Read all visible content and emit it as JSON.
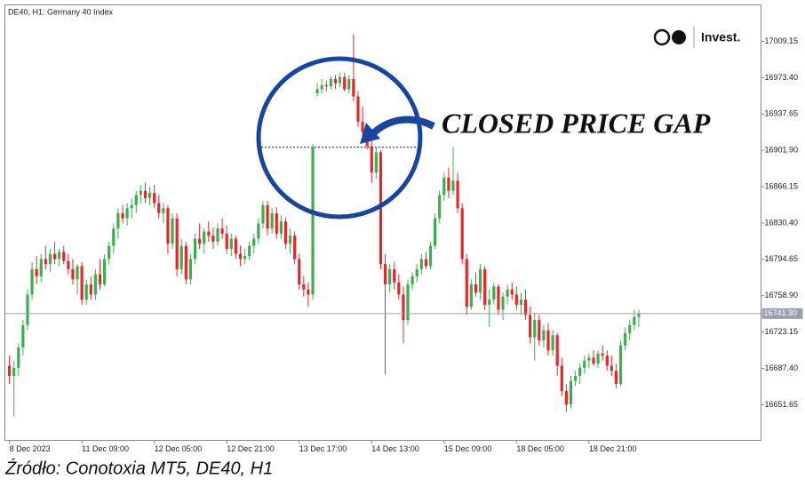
{
  "chart_data": {
    "type": "candlestick",
    "title": "DE40, H1:  Germany 40 Index",
    "annotation": "CLOSED PRICE GAP",
    "brand": "Invest.",
    "source": "Źródło: Conotoxia MT5, DE40, H1",
    "up_color": "#3dae4f",
    "down_color": "#e8262a",
    "xlim": [
      -1,
      166
    ],
    "xticks": [
      {
        "value": 0,
        "label": "8 Dec 2023"
      },
      {
        "value": 16,
        "label": "11 Dec 09:00"
      },
      {
        "value": 32,
        "label": "12 Dec 05:00"
      },
      {
        "value": 48,
        "label": "12 Dec 21:00"
      },
      {
        "value": 64,
        "label": "13 Dec 17:00"
      },
      {
        "value": 80,
        "label": "14 Dec 13:00"
      },
      {
        "value": 96,
        "label": "15 Dec 09:00"
      },
      {
        "value": 112,
        "label": "18 Dec 05:00"
      },
      {
        "value": 128,
        "label": "18 Dec 21:00"
      }
    ],
    "ylim": [
      16616.6,
      17045
    ],
    "yticks": [
      17009.15,
      {
        "value": 16973.4,
        "label": "16973.40"
      },
      16937.65,
      {
        "value": 16901.9,
        "label": "16901.90"
      },
      16866.15,
      {
        "value": 16830.4,
        "label": "16830.40"
      },
      16794.65,
      {
        "value": 16758.9,
        "label": "16758.90"
      },
      16723.15,
      {
        "value": 16687.4,
        "label": "16687.40"
      },
      16651.65
    ],
    "last_price": {
      "value": 16741.3,
      "label": "16741.30"
    },
    "gap_level": 16905,
    "ohlc": [
      [
        16690,
        16700,
        16672,
        16680
      ],
      [
        16680,
        16695,
        16640,
        16688
      ],
      [
        16688,
        16712,
        16680,
        16708
      ],
      [
        16708,
        16735,
        16700,
        16730
      ],
      [
        16730,
        16765,
        16725,
        16760
      ],
      [
        16760,
        16792,
        16755,
        16785
      ],
      [
        16785,
        16798,
        16770,
        16778
      ],
      [
        16778,
        16800,
        16772,
        16795
      ],
      [
        16795,
        16808,
        16785,
        16790
      ],
      [
        16790,
        16805,
        16782,
        16800
      ],
      [
        16800,
        16812,
        16790,
        16795
      ],
      [
        16795,
        16805,
        16788,
        16802
      ],
      [
        16802,
        16808,
        16790,
        16793
      ],
      [
        16793,
        16800,
        16780,
        16785
      ],
      [
        16785,
        16795,
        16770,
        16775
      ],
      [
        16775,
        16790,
        16760,
        16788
      ],
      [
        16788,
        16792,
        16750,
        16755
      ],
      [
        16755,
        16775,
        16750,
        16770
      ],
      [
        16770,
        16778,
        16755,
        16760
      ],
      [
        16760,
        16785,
        16755,
        16780
      ],
      [
        16780,
        16795,
        16765,
        16770
      ],
      [
        16770,
        16800,
        16768,
        16795
      ],
      [
        16795,
        16812,
        16790,
        16808
      ],
      [
        16808,
        16830,
        16800,
        16825
      ],
      [
        16825,
        16845,
        16815,
        16840
      ],
      [
        16840,
        16848,
        16830,
        16835
      ],
      [
        16835,
        16850,
        16828,
        16845
      ],
      [
        16845,
        16855,
        16835,
        16848
      ],
      [
        16848,
        16862,
        16840,
        16858
      ],
      [
        16858,
        16868,
        16850,
        16862
      ],
      [
        16862,
        16870,
        16850,
        16855
      ],
      [
        16855,
        16866,
        16848,
        16860
      ],
      [
        16860,
        16868,
        16845,
        16850
      ],
      [
        16850,
        16858,
        16835,
        16840
      ],
      [
        16840,
        16850,
        16830,
        16845
      ],
      [
        16845,
        16848,
        16800,
        16810
      ],
      [
        16810,
        16840,
        16805,
        16835
      ],
      [
        16835,
        16840,
        16778,
        16785
      ],
      [
        16785,
        16815,
        16780,
        16808
      ],
      [
        16808,
        16812,
        16770,
        16775
      ],
      [
        16775,
        16800,
        16770,
        16795
      ],
      [
        16795,
        16820,
        16790,
        16815
      ],
      [
        16815,
        16830,
        16805,
        16810
      ],
      [
        16810,
        16825,
        16800,
        16822
      ],
      [
        16822,
        16832,
        16812,
        16818
      ],
      [
        16818,
        16826,
        16805,
        16812
      ],
      [
        16812,
        16830,
        16808,
        16825
      ],
      [
        16825,
        16835,
        16815,
        16820
      ],
      [
        16820,
        16828,
        16800,
        16805
      ],
      [
        16805,
        16820,
        16798,
        16815
      ],
      [
        16815,
        16818,
        16795,
        16800
      ],
      [
        16800,
        16808,
        16788,
        16795
      ],
      [
        16795,
        16805,
        16790,
        16798
      ],
      [
        16798,
        16812,
        16794,
        16808
      ],
      [
        16808,
        16820,
        16800,
        16815
      ],
      [
        16815,
        16835,
        16810,
        16830
      ],
      [
        16830,
        16852,
        16825,
        16848
      ],
      [
        16848,
        16852,
        16818,
        16825
      ],
      [
        16825,
        16845,
        16820,
        16840
      ],
      [
        16840,
        16846,
        16815,
        16820
      ],
      [
        16820,
        16838,
        16815,
        16832
      ],
      [
        16832,
        16836,
        16805,
        16810
      ],
      [
        16810,
        16825,
        16800,
        16818
      ],
      [
        16818,
        16822,
        16790,
        16795
      ],
      [
        16795,
        16800,
        16765,
        16770
      ],
      [
        16770,
        16778,
        16758,
        16765
      ],
      [
        16765,
        16772,
        16748,
        16760
      ],
      [
        16760,
        16908,
        16755,
        16905
      ],
      [
        16958,
        16968,
        16955,
        16962
      ],
      [
        16962,
        16972,
        16958,
        16966
      ],
      [
        16966,
        16970,
        16960,
        16965
      ],
      [
        16965,
        16975,
        16962,
        16972
      ],
      [
        16972,
        16976,
        16962,
        16968
      ],
      [
        16968,
        16978,
        16964,
        16974
      ],
      [
        16974,
        16978,
        16960,
        16962
      ],
      [
        16962,
        16976,
        16958,
        16972
      ],
      [
        16972,
        17016,
        16950,
        16955
      ],
      [
        16955,
        16960,
        16925,
        16930
      ],
      [
        16930,
        16945,
        16915,
        16920
      ],
      [
        16920,
        16925,
        16903,
        16906
      ],
      [
        16906,
        16912,
        16870,
        16880
      ],
      [
        16880,
        16905,
        16874,
        16900
      ],
      [
        16900,
        16902,
        16785,
        16790
      ],
      [
        16790,
        16800,
        16682,
        16770
      ],
      [
        16770,
        16790,
        16762,
        16785
      ],
      [
        16785,
        16792,
        16765,
        16772
      ],
      [
        16772,
        16780,
        16755,
        16760
      ],
      [
        16760,
        16768,
        16712,
        16735
      ],
      [
        16735,
        16775,
        16730,
        16770
      ],
      [
        16770,
        16782,
        16765,
        16778
      ],
      [
        16778,
        16790,
        16772,
        16785
      ],
      [
        16785,
        16800,
        16780,
        16795
      ],
      [
        16795,
        16802,
        16785,
        16788
      ],
      [
        16788,
        16812,
        16785,
        16808
      ],
      [
        16808,
        16840,
        16805,
        16835
      ],
      [
        16835,
        16862,
        16830,
        16858
      ],
      [
        16858,
        16880,
        16852,
        16875
      ],
      [
        16875,
        16885,
        16855,
        16862
      ],
      [
        16862,
        16905,
        16858,
        16872
      ],
      [
        16872,
        16880,
        16840,
        16845
      ],
      [
        16845,
        16850,
        16790,
        16795
      ],
      [
        16795,
        16800,
        16740,
        16748
      ],
      [
        16748,
        16775,
        16745,
        16770
      ],
      [
        16770,
        16782,
        16758,
        16762
      ],
      [
        16762,
        16790,
        16755,
        16785
      ],
      [
        16785,
        16788,
        16745,
        16750
      ],
      [
        16750,
        16765,
        16728,
        16755
      ],
      [
        16755,
        16772,
        16750,
        16768
      ],
      [
        16768,
        16770,
        16740,
        16745
      ],
      [
        16745,
        16762,
        16735,
        16758
      ],
      [
        16758,
        16770,
        16750,
        16765
      ],
      [
        16765,
        16772,
        16755,
        16760
      ],
      [
        16760,
        16768,
        16745,
        16750
      ],
      [
        16750,
        16762,
        16740,
        16755
      ],
      [
        16755,
        16765,
        16735,
        16740
      ],
      [
        16740,
        16748,
        16712,
        16718
      ],
      [
        16718,
        16742,
        16695,
        16735
      ],
      [
        16735,
        16740,
        16710,
        16715
      ],
      [
        16715,
        16730,
        16708,
        16725
      ],
      [
        16725,
        16732,
        16700,
        16705
      ],
      [
        16705,
        16725,
        16700,
        16720
      ],
      [
        16720,
        16722,
        16680,
        16690
      ],
      [
        16690,
        16698,
        16660,
        16665
      ],
      [
        16665,
        16672,
        16645,
        16652
      ],
      [
        16652,
        16680,
        16648,
        16675
      ],
      [
        16675,
        16685,
        16670,
        16680
      ],
      [
        16680,
        16692,
        16672,
        16688
      ],
      [
        16688,
        16700,
        16682,
        16695
      ],
      [
        16695,
        16702,
        16688,
        16698
      ],
      [
        16698,
        16705,
        16690,
        16692
      ],
      [
        16692,
        16705,
        16688,
        16702
      ],
      [
        16702,
        16710,
        16695,
        16700
      ],
      [
        16700,
        16705,
        16685,
        16690
      ],
      [
        16690,
        16700,
        16680,
        16685
      ],
      [
        16685,
        16692,
        16668,
        16672
      ],
      [
        16672,
        16715,
        16670,
        16710
      ],
      [
        16710,
        16728,
        16705,
        16722
      ],
      [
        16722,
        16735,
        16715,
        16730
      ],
      [
        16730,
        16745,
        16725,
        16738
      ],
      [
        16738,
        16745,
        16728,
        16741.3
      ]
    ]
  }
}
